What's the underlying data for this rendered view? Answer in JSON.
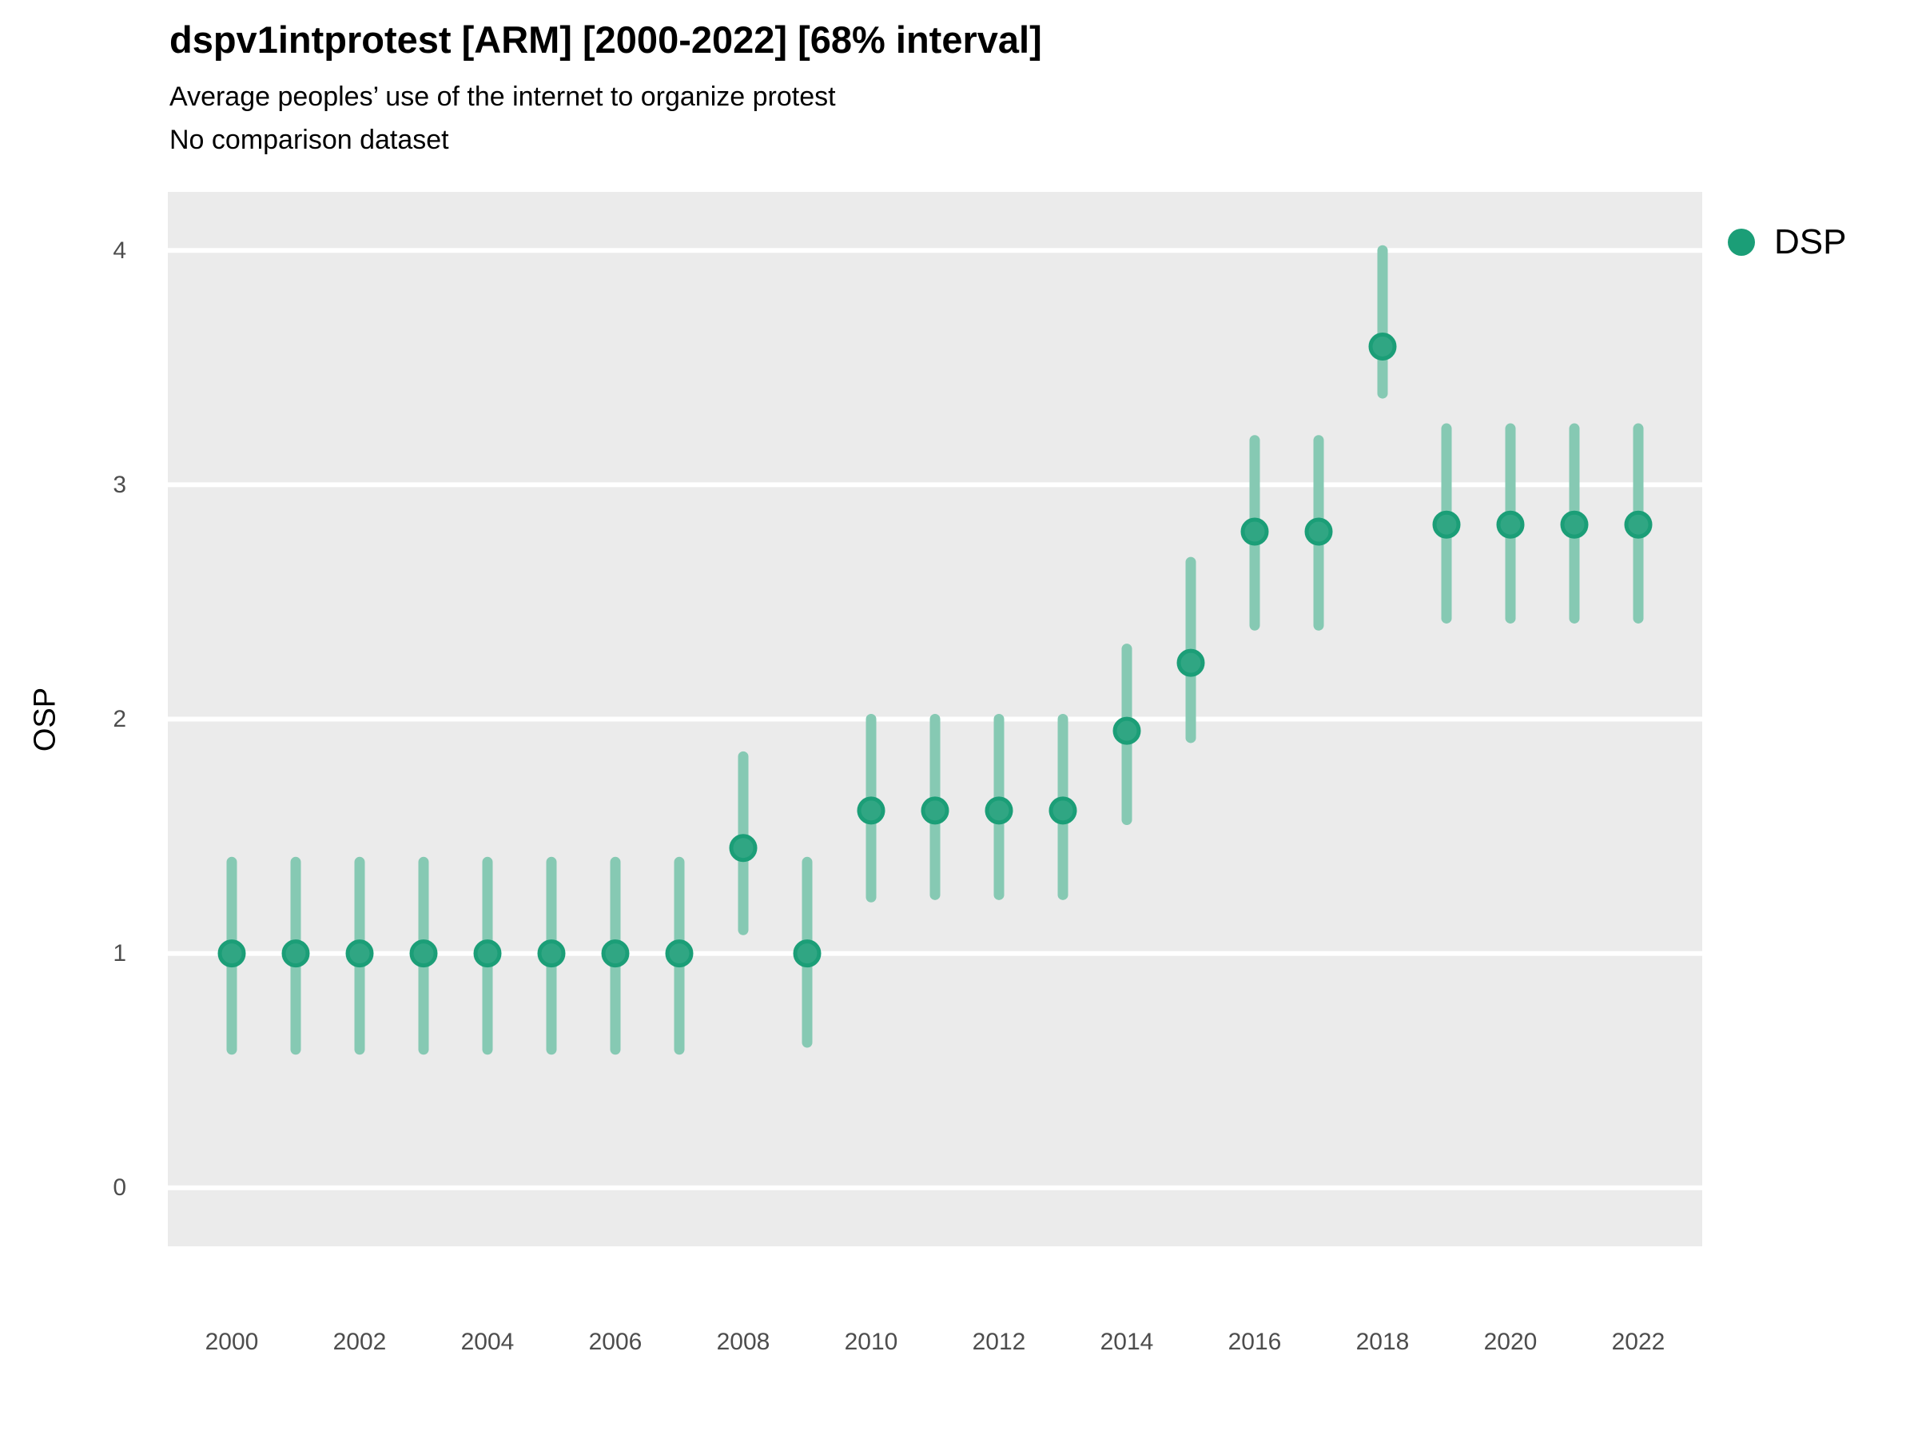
{
  "chart_data": {
    "type": "pointrange",
    "title": "dspv1intprotest [ARM] [2000-2022] [68% interval]",
    "subtitle": "Average peoples’ use of the internet to organize protest",
    "caption_line": "No comparison dataset",
    "xlabel": "",
    "ylabel": "OSP",
    "interval_level": "68%",
    "legend": {
      "position": "right",
      "entries": [
        {
          "label": "DSP",
          "color": "#1B9E77"
        }
      ]
    },
    "x": [
      2000,
      2001,
      2002,
      2003,
      2004,
      2005,
      2006,
      2007,
      2008,
      2009,
      2010,
      2011,
      2012,
      2013,
      2014,
      2015,
      2016,
      2017,
      2018,
      2019,
      2020,
      2021,
      2022
    ],
    "series": [
      {
        "name": "DSP",
        "values": [
          1.0,
          1.0,
          1.0,
          1.0,
          1.0,
          1.0,
          1.0,
          1.0,
          1.45,
          1.0,
          1.61,
          1.61,
          1.61,
          1.61,
          1.95,
          2.24,
          2.8,
          2.8,
          3.59,
          2.83,
          2.83,
          2.83,
          2.83
        ],
        "lower": [
          0.59,
          0.59,
          0.59,
          0.59,
          0.59,
          0.59,
          0.59,
          0.59,
          1.1,
          0.62,
          1.24,
          1.25,
          1.25,
          1.25,
          1.57,
          1.92,
          2.4,
          2.4,
          3.39,
          2.43,
          2.43,
          2.43,
          2.43
        ],
        "upper": [
          1.39,
          1.39,
          1.39,
          1.39,
          1.39,
          1.39,
          1.39,
          1.39,
          1.84,
          1.39,
          2.0,
          2.0,
          2.0,
          2.0,
          2.3,
          2.67,
          3.19,
          3.19,
          4.0,
          3.24,
          3.24,
          3.24,
          3.24
        ]
      }
    ],
    "x_ticks": [
      2000,
      2002,
      2004,
      2006,
      2008,
      2010,
      2012,
      2014,
      2016,
      2018,
      2020,
      2022
    ],
    "y_ticks": [
      0,
      1,
      2,
      3,
      4
    ],
    "ylim": [
      -0.25,
      4.25
    ],
    "xlim": [
      1999,
      2023
    ],
    "grid": "horizontal major gridlines only, white on grey panel",
    "style": {
      "panel_fill": "#EBEBEB",
      "gridline_color": "#FFFFFF",
      "point_fill": "#30A683",
      "point_stroke": "#1B9E77",
      "interval_color": "#86C9B3",
      "tick_text_color": "#4D4D4D"
    }
  }
}
